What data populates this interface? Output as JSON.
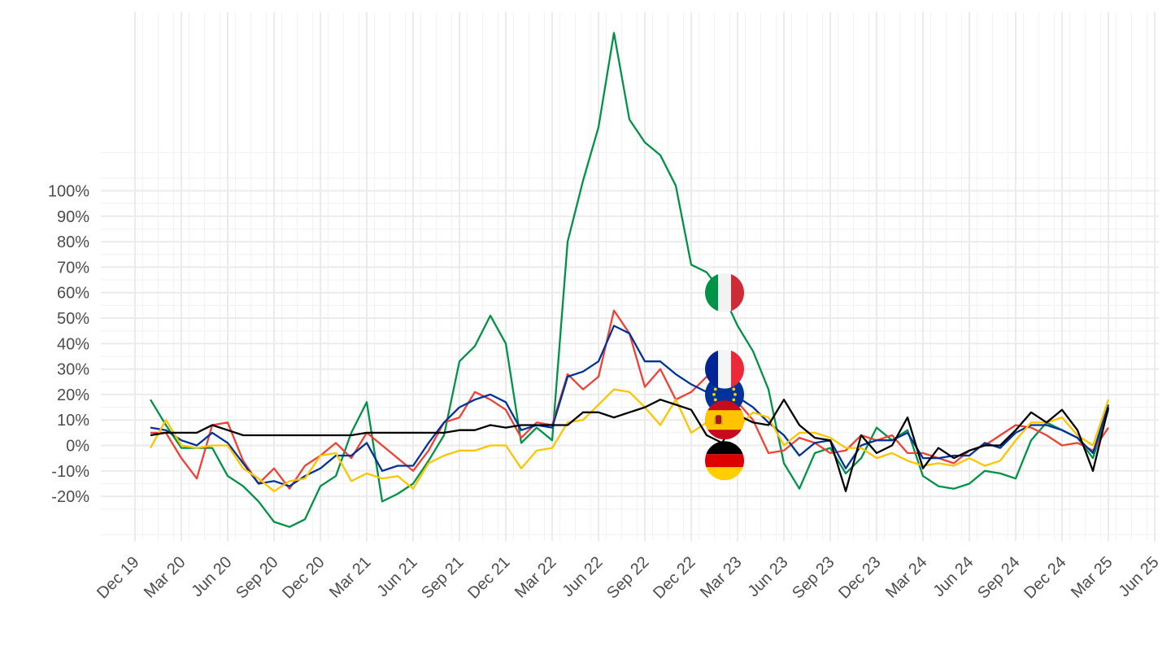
{
  "chart_data": {
    "type": "line",
    "title": "",
    "xlabel": "",
    "ylabel": "",
    "grid": true,
    "legend": "flag markers at Feb 23",
    "ylim": [
      -40,
      170
    ],
    "y_ticks": [
      -20,
      -10,
      0,
      10,
      20,
      30,
      40,
      50,
      60,
      70,
      80,
      90,
      100
    ],
    "y_tick_labels": [
      "-20%",
      "-10%",
      "0%",
      "10%",
      "20%",
      "30%",
      "40%",
      "50%",
      "60%",
      "70%",
      "80%",
      "90%",
      "100%"
    ],
    "x_start": "Jan 20",
    "x_end": "Apr 25",
    "x_ticks": [
      "Dec 19",
      "Mar 20",
      "Jun 20",
      "Sep 20",
      "Dec 20",
      "Mar 21",
      "Jun 21",
      "Sep 21",
      "Dec 21",
      "Mar 22",
      "Jun 22",
      "Sep 22",
      "Dec 22",
      "Mar 23",
      "Jun 23",
      "Sep 23",
      "Dec 23",
      "Mar 24",
      "Jun 24",
      "Sep 24",
      "Dec 24",
      "Mar 25",
      "Jun 25"
    ],
    "series": [
      {
        "id": "italy",
        "color": "#009246",
        "flag": "italy-flag",
        "flag_value": 60,
        "values": [
          18,
          8,
          -1,
          -1,
          -1,
          -12,
          -16,
          -22,
          -30,
          -32,
          -29,
          -16,
          -12,
          5,
          17,
          -22,
          -19,
          -15,
          -6,
          4,
          33,
          39,
          51,
          40,
          1,
          7,
          2,
          80,
          104,
          125,
          162,
          128,
          119,
          114,
          102,
          71,
          68,
          60,
          47,
          37,
          22,
          -7,
          -17,
          -3,
          -1,
          -11,
          -5,
          7,
          2,
          6,
          -12,
          -16,
          -17,
          -15,
          -10,
          -11,
          -13,
          2,
          9,
          6,
          3,
          -5,
          14
        ]
      },
      {
        "id": "france",
        "color": "#ef4135",
        "flag": "france-flag",
        "flag_value": 30,
        "values": [
          5,
          5,
          -5,
          -13,
          8,
          9,
          -6,
          -15,
          -9,
          -17,
          -8,
          -4,
          1,
          -5,
          5,
          0,
          -5,
          -10,
          -2,
          9,
          11,
          21,
          18,
          14,
          3,
          9,
          8,
          28,
          22,
          27,
          53,
          44,
          23,
          30,
          18,
          21,
          27,
          23,
          17,
          10,
          -3,
          -2,
          3,
          1,
          -3,
          -2,
          4,
          2,
          4,
          -3,
          -3,
          -5,
          -7,
          -2,
          0,
          4,
          8,
          7,
          4,
          0,
          1,
          -2,
          7
        ]
      },
      {
        "id": "eu",
        "color": "#003399",
        "flag": "eu-flag",
        "flag_value": 20,
        "values": [
          7,
          6,
          2,
          0,
          5,
          1,
          -7,
          -15,
          -14,
          -16,
          -12,
          -9,
          -4,
          -4,
          1,
          -10,
          -8,
          -8,
          1,
          9,
          15,
          18,
          20,
          17,
          6,
          8,
          7,
          27,
          29,
          33,
          47,
          44,
          33,
          33,
          28,
          24,
          21,
          21,
          19,
          15,
          9,
          4,
          -4,
          1,
          2,
          -9,
          0,
          2,
          2,
          5,
          -5,
          -5,
          -4,
          -4,
          1,
          -1,
          5,
          8,
          8,
          6,
          3,
          -3,
          16
        ]
      },
      {
        "id": "spain",
        "color": "#ffc400",
        "flag": "spain-flag",
        "flag_value": 10,
        "values": [
          -1,
          10,
          0,
          -1,
          0,
          0,
          -9,
          -13,
          -18,
          -14,
          -13,
          -4,
          -3,
          -14,
          -11,
          -13,
          -12,
          -17,
          -7,
          -4,
          -2,
          -2,
          0,
          0,
          -9,
          -2,
          -1,
          9,
          10,
          16,
          22,
          21,
          15,
          8,
          18,
          5,
          9,
          12,
          7,
          13,
          11,
          0,
          5,
          5,
          3,
          -1,
          -1,
          -5,
          -3,
          -6,
          -8,
          -7,
          -8,
          -5,
          -8,
          -6,
          2,
          9,
          9,
          11,
          4,
          0,
          18
        ]
      },
      {
        "id": "germany",
        "color": "#000000",
        "flag": "germany-flag",
        "flag_value": -6,
        "values": [
          4,
          5,
          5,
          5,
          8,
          6,
          4,
          4,
          4,
          4,
          4,
          4,
          4,
          4,
          5,
          5,
          5,
          5,
          5,
          5,
          6,
          6,
          8,
          7,
          8,
          8,
          8,
          8,
          13,
          13,
          11,
          13,
          15,
          18,
          16,
          14,
          4,
          1,
          12,
          9,
          8,
          18,
          8,
          3,
          2,
          -18,
          4,
          -3,
          0,
          11,
          -9,
          -1,
          -5,
          -2,
          0,
          0,
          6,
          13,
          9,
          14,
          6,
          -10,
          15
        ]
      }
    ],
    "flag_marker_x": "Feb 23"
  }
}
